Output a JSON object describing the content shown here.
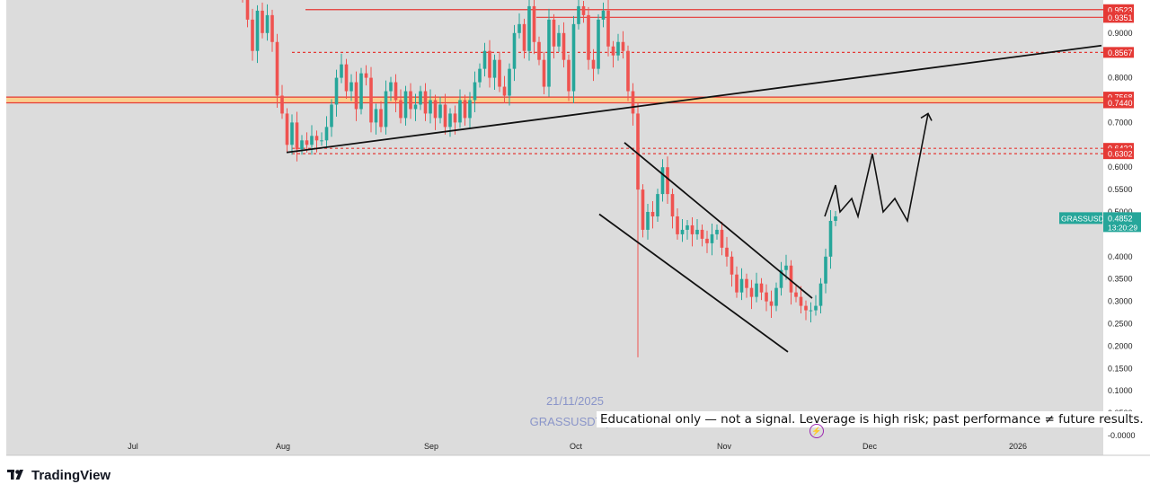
{
  "watermark": {
    "date": "21/11/2025",
    "symbol": "GRASSUSDT | D"
  },
  "disclaimer": "Educational only — not a signal. Leverage is high risk; past performance ≠ future results.",
  "brand": {
    "name": "TradingView"
  },
  "colors": {
    "up": "#26a69a",
    "down": "#ef5350",
    "level": "#e53935",
    "zone": "#ffcc80",
    "trend": "#111111",
    "price_tag": "#26a69a"
  },
  "chart_data": {
    "type": "candlestick",
    "symbol": "GRASSUSDT",
    "x_labels": [
      "Jul",
      "Aug",
      "Sep",
      "Oct",
      "Nov",
      "Dec",
      "2026"
    ],
    "y_ticks": [
      "0.9000",
      "0.8000",
      "0.7000",
      "0.6000",
      "0.5500",
      "0.5000",
      "0.4000",
      "0.3500",
      "0.3000",
      "0.2500",
      "0.2000",
      "0.1500",
      "0.1000",
      "0.0500",
      "-0.0000"
    ],
    "y_tick_values": [
      0.9,
      0.8,
      0.7,
      0.6,
      0.55,
      0.5,
      0.4,
      0.35,
      0.3,
      0.25,
      0.2,
      0.15,
      0.1,
      0.05,
      0.0
    ],
    "price_levels": [
      {
        "label": "0.9523",
        "value": 0.9523
      },
      {
        "label": "0.9351",
        "value": 0.9351
      },
      {
        "label": "0.8567",
        "value": 0.8567
      },
      {
        "label": "0.7568",
        "value": 0.7568
      },
      {
        "label": "0.7440",
        "value": 0.744
      },
      {
        "label": "0.6422",
        "value": 0.6422
      },
      {
        "label": "0.6302",
        "value": 0.6302
      }
    ],
    "current_price": {
      "symbol": "GRASSUSDT",
      "value": "0.4852",
      "countdown": "13:20:29"
    },
    "closes": [
      0.98,
      0.93,
      0.86,
      0.95,
      0.9,
      0.94,
      0.88,
      0.76,
      0.72,
      0.65,
      0.7,
      0.64,
      0.66,
      0.65,
      0.67,
      0.66,
      0.66,
      0.69,
      0.74,
      0.8,
      0.83,
      0.77,
      0.79,
      0.73,
      0.81,
      0.8,
      0.7,
      0.73,
      0.69,
      0.77,
      0.79,
      0.75,
      0.71,
      0.77,
      0.73,
      0.74,
      0.77,
      0.72,
      0.75,
      0.71,
      0.74,
      0.69,
      0.72,
      0.7,
      0.75,
      0.71,
      0.75,
      0.79,
      0.82,
      0.86,
      0.8,
      0.84,
      0.78,
      0.76,
      0.82,
      0.9,
      0.92,
      0.86,
      0.96,
      0.88,
      0.84,
      0.78,
      0.93,
      0.87,
      0.9,
      0.84,
      0.77,
      0.92,
      0.96,
      0.94,
      0.84,
      0.82,
      0.93,
      0.95,
      0.87,
      0.85,
      0.88,
      0.86,
      0.77,
      0.72,
      0.55,
      0.46,
      0.5,
      0.49,
      0.54,
      0.6,
      0.54,
      0.49,
      0.45,
      0.46,
      0.47,
      0.45,
      0.46,
      0.44,
      0.43,
      0.45,
      0.46,
      0.42,
      0.4,
      0.36,
      0.32,
      0.35,
      0.33,
      0.31,
      0.34,
      0.32,
      0.3,
      0.29,
      0.33,
      0.37,
      0.38,
      0.32,
      0.31,
      0.29,
      0.28,
      0.28,
      0.29,
      0.34,
      0.4,
      0.48,
      0.49
    ],
    "projection": [
      0.49,
      0.56,
      0.5,
      0.53,
      0.49,
      0.63,
      0.5,
      0.53,
      0.48,
      0.72
    ],
    "overlays": [
      "rising-support-line",
      "falling-channel-upper",
      "falling-channel-lower",
      "resistance-zone",
      "projected-zigzag-path"
    ]
  }
}
